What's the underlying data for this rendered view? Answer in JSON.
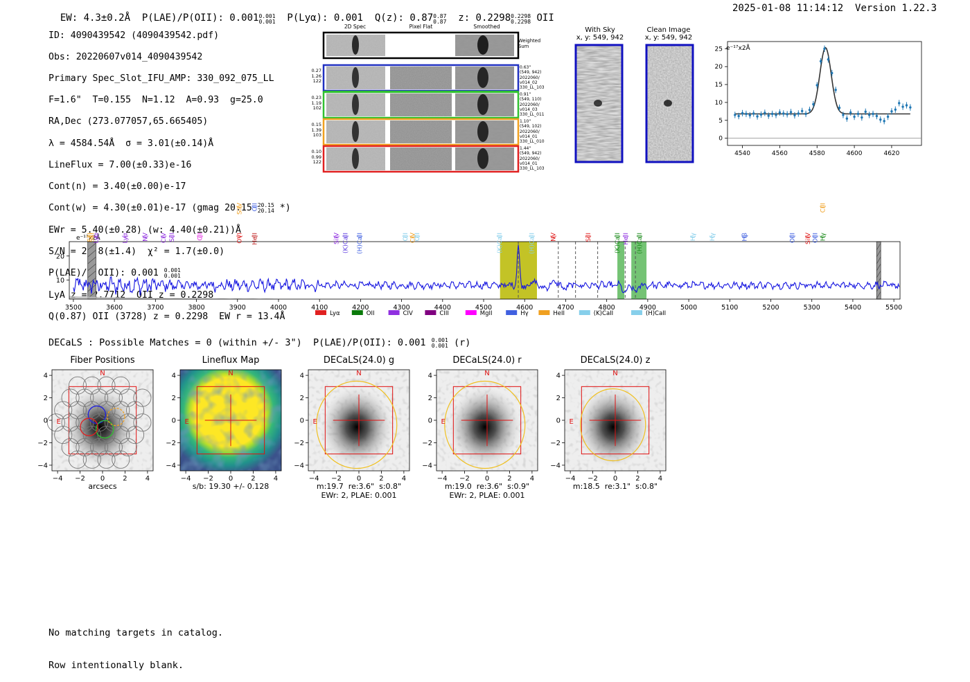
{
  "header": {
    "ew": "EW: 4.3±0.2Å",
    "plae_label": "P(LAE)/P(OII): 0.001",
    "plae_hi": "0.001",
    "plae_lo": "0.001",
    "plya": "P(Lyα): 0.001",
    "qz_label": "Q(z): 0.87",
    "qz_hi": "0.87",
    "qz_lo": "0.87",
    "z_label": "z: 0.2298",
    "z_hi": "0.2298",
    "z_lo": "0.2298",
    "z_line": "OII",
    "timestamp": "2025-01-08 11:14:12",
    "version": "Version 1.22.3"
  },
  "info": {
    "id": "ID: 4090439542 (4090439542.pdf)",
    "obs": "Obs: 20220607v014_4090439542",
    "primary": "Primary Spec_Slot_IFU_AMP: 330_092_075_LL",
    "params": "F=1.6\"  T=0.155  N=1.12  A=0.93  g=25.0",
    "radec": "RA,Dec (273.077057,65.665405)",
    "lambda": "λ = 4584.54Å  σ = 3.01(±0.14)Å",
    "lineflux": "LineFlux = 7.00(±0.33)e-16",
    "contn": "Cont(n) = 3.40(±0.00)e-17",
    "contw": "Cont(w) = 4.30(±0.01)e-17 (gmag 20.15",
    "contw_hi": "20.15",
    "contw_lo": "20.14",
    "contw_end": "*)",
    "ewr": "EWr = 5.40(±0.28) (w: 4.40(±0.21))Å",
    "sn": "S/N = 28.8(±1.4)  χ² = 1.7(±0.0)",
    "plae": "P(LAE)/P(OII): 0.001",
    "plae_hi": "0.001",
    "plae_lo": "0.001",
    "lya": "LyA z = 2.7712  OII z = 0.2298",
    "q": "Q(0.87) OII (3728) z = 0.2298  EW r = 13.4Å"
  },
  "cutouts": {
    "col_2d": "2D Spec",
    "col_flat": "Pixel Flat",
    "col_smooth": "Smoothed",
    "weighted": "Weighted\nSum",
    "rows": [
      {
        "left": "0.27\n1.26\n122",
        "right": "0.63\"\n(549, 942)\n2022060/\nv014_02\n330_LL_103",
        "color": "#2030c0"
      },
      {
        "left": "0.23\n1.19\n102",
        "right": "0.91\"\n(549, 110)\n2022060/\nv014_03\n330_LL_011",
        "color": "#30c030"
      },
      {
        "left": "0.15\n1.39\n103",
        "right": "1.10\"\n(549, 102)\n2022060/\nv014_01\n330_LL_010",
        "color": "#f0a020"
      },
      {
        "left": "0.10\n0.99\n122",
        "right": "1.44\"\n(549, 942)\n2022060/\nv014_01\n330_LL_103",
        "color": "#e02020"
      }
    ]
  },
  "sky": {
    "with_title": "With Sky",
    "with_coords": "x, y: 549, 942",
    "clean_title": "Clean Image",
    "clean_coords": "x, y: 549, 942"
  },
  "chart_data": [
    {
      "type": "scatter",
      "name": "zoom-emission-line",
      "ylabel": "e⁻¹⁷x2Å",
      "xlim": [
        4532,
        4636
      ],
      "ylim": [
        -2,
        27
      ],
      "xticks": [
        4540,
        4560,
        4580,
        4600,
        4620
      ],
      "yticks": [
        0,
        5,
        10,
        15,
        20,
        25
      ],
      "x": [
        4536,
        4538,
        4540,
        4542,
        4544,
        4546,
        4548,
        4550,
        4552,
        4554,
        4556,
        4558,
        4560,
        4562,
        4564,
        4566,
        4568,
        4570,
        4572,
        4574,
        4576,
        4578,
        4580,
        4582,
        4584,
        4586,
        4588,
        4590,
        4592,
        4594,
        4596,
        4598,
        4600,
        4602,
        4604,
        4606,
        4608,
        4610,
        4612,
        4614,
        4616,
        4618,
        4620,
        4622,
        4624,
        4626,
        4628,
        4630
      ],
      "y": [
        6.5,
        6.2,
        7.0,
        6.8,
        6.4,
        6.9,
        6.1,
        6.6,
        7.1,
        6.3,
        6.8,
        6.5,
        7.2,
        6.9,
        6.7,
        7.3,
        6.4,
        6.9,
        7.6,
        6.8,
        7.9,
        9.5,
        14.8,
        21.5,
        25.0,
        22.0,
        18.2,
        13.5,
        8.5,
        6.5,
        5.5,
        7.2,
        6.0,
        6.8,
        5.8,
        7.4,
        6.5,
        6.8,
        6.2,
        5.2,
        4.8,
        6.0,
        7.5,
        8.0,
        9.8,
        8.8,
        9.2,
        8.6
      ],
      "fit": {
        "center": 4584.54,
        "sigma": 3.01,
        "amp": 18.5,
        "continuum": 6.8
      }
    },
    {
      "type": "line",
      "name": "full-spectrum",
      "ylabel": "e⁻¹⁷x2Å",
      "xlim": [
        3490,
        5515
      ],
      "ylim": [
        2,
        26
      ],
      "xticks": [
        3500,
        3600,
        3700,
        3800,
        3900,
        4000,
        4100,
        4200,
        4300,
        4400,
        4500,
        4600,
        4700,
        4800,
        4900,
        5000,
        5100,
        5200,
        5300,
        5400,
        5500
      ],
      "yticks": [
        10,
        20
      ],
      "continuum": 7.8,
      "emission_peak": {
        "x": 4584.5,
        "y": 24.0
      },
      "absorption": [
        {
          "x": 4845,
          "depth": 3.5
        },
        {
          "x": 4870,
          "depth": 3.0
        }
      ],
      "highlight_bands": [
        {
          "x0": 4540,
          "x1": 4630,
          "color": "#b8b800"
        },
        {
          "x0": 4826,
          "x1": 4843,
          "color": "#5cb85c"
        },
        {
          "x0": 4860,
          "x1": 4897,
          "color": "#5cb85c"
        }
      ],
      "masked_bands": [
        {
          "x0": 3535,
          "x1": 3555
        },
        {
          "x0": 5458,
          "x1": 5468
        }
      ],
      "dashed_lines": [
        4584.5,
        4682,
        4724,
        4778,
        4845,
        4870
      ],
      "line_labels": [
        {
          "x": 3545,
          "label": "SiII",
          "color": "#f0a020",
          "row": 1
        },
        {
          "x": 3540,
          "label": "SiII",
          "color": "#f0a020",
          "row": 1
        },
        {
          "x": 3555,
          "label": "Lyα",
          "color": "#9030e0",
          "row": 1
        },
        {
          "x": 3626,
          "label": "Lyα",
          "color": "#9030e0",
          "row": 1
        },
        {
          "x": 3675,
          "label": "NV",
          "color": "#9030e0",
          "row": 1
        },
        {
          "x": 3720,
          "label": "CIV",
          "color": "#9030e0",
          "row": 1
        },
        {
          "x": 3740,
          "label": "SiII",
          "color": "#9030e0",
          "row": 1
        },
        {
          "x": 3808,
          "label": "CII",
          "color": "#e020e0",
          "row": 1
        },
        {
          "x": 3905,
          "label": "OVI",
          "color": "#e02020",
          "row": 1
        },
        {
          "x": 3905,
          "label": "SiIV",
          "color": "#f0a020",
          "row": 2
        },
        {
          "x": 3942,
          "label": "HeII",
          "color": "#c02020",
          "row": 1
        },
        {
          "x": 3942,
          "label": "OII",
          "color": "#4060e0",
          "row": 2
        },
        {
          "x": 4141,
          "label": "SiIV",
          "color": "#9030e0",
          "row": 1
        },
        {
          "x": 4163,
          "label": "(K)CaII",
          "color": "#6040e0",
          "row": 1
        },
        {
          "x": 4198,
          "label": "(H)CaII",
          "color": "#4060e0",
          "row": 1
        },
        {
          "x": 4309,
          "label": "OII",
          "color": "#87cfeb",
          "row": 1
        },
        {
          "x": 4327,
          "label": "CIV",
          "color": "#f0a020",
          "row": 1
        },
        {
          "x": 4338,
          "label": "OII",
          "color": "#87cfeb",
          "row": 1
        },
        {
          "x": 4539,
          "label": "(K)CaII",
          "color": "#87cfeb",
          "row": 1
        },
        {
          "x": 4617,
          "label": "(H)CaII",
          "color": "#87cfeb",
          "row": 1
        },
        {
          "x": 4670,
          "label": "NV",
          "color": "#e02020",
          "row": 1
        },
        {
          "x": 4755,
          "label": "SiII",
          "color": "#e02020",
          "row": 1
        },
        {
          "x": 4826,
          "label": "(K)CaII",
          "color": "#1a8a1a",
          "row": 1
        },
        {
          "x": 4846,
          "label": "HeII",
          "color": "#9030e0",
          "row": 1
        },
        {
          "x": 4880,
          "label": "(H)CaII",
          "color": "#1a8a1a",
          "row": 1
        },
        {
          "x": 5010,
          "label": "Hγ",
          "color": "#87cfeb",
          "row": 1
        },
        {
          "x": 5057,
          "label": "Hγ",
          "color": "#87cfeb",
          "row": 1
        },
        {
          "x": 5136,
          "label": "Hβ",
          "color": "#4060e0",
          "row": 1
        },
        {
          "x": 5252,
          "label": "OIII",
          "color": "#4060e0",
          "row": 1
        },
        {
          "x": 5290,
          "label": "SiIV",
          "color": "#e02020",
          "row": 1
        },
        {
          "x": 5308,
          "label": "OIII",
          "color": "#4060e0",
          "row": 1
        },
        {
          "x": 5327,
          "label": "CIII",
          "color": "#f0a020",
          "row": 2
        },
        {
          "x": 5327,
          "label": "Hγ",
          "color": "#1a8a1a",
          "row": 1
        }
      ],
      "legend": [
        {
          "label": "Lyα",
          "color": "#e02020"
        },
        {
          "label": "OII",
          "color": "#0a7a0a"
        },
        {
          "label": "CIV",
          "color": "#9030e0"
        },
        {
          "label": "CIII",
          "color": "#800080"
        },
        {
          "label": "MgII",
          "color": "#ff00ff"
        },
        {
          "label": "Hγ",
          "color": "#4060e0"
        },
        {
          "label": "HeII",
          "color": "#f0a020"
        },
        {
          "label": "(K)CaII",
          "color": "#87cfeb"
        },
        {
          "label": "(H)CaII",
          "color": "#87cfeb"
        }
      ]
    }
  ],
  "decals_header": "DECaLS : Possible Matches = 0 (within +/- 3\")  P(LAE)/P(OII): 0.001",
  "decals_header_hi": "0.001",
  "decals_header_lo": "0.001",
  "decals_header_end": "(r)",
  "panels": [
    {
      "title": "Fiber Positions",
      "xlabel": "arcsecs",
      "sub2": "",
      "kind": "fiber"
    },
    {
      "title": "Lineflux Map",
      "xlabel": "s/b: 19.30 +/- 0.128",
      "sub2": "",
      "kind": "lineflux"
    },
    {
      "title": "DECaLS(24.0) g",
      "xlabel": "m:19.7  re:3.6\"  s:0.8\"",
      "sub2": "EWr: 2, PLAE: 0.001",
      "kind": "galaxy"
    },
    {
      "title": "DECaLS(24.0) r",
      "xlabel": "m:19.0  re:3.6\"  s:0.9\"",
      "sub2": "EWr: 2, PLAE: 0.001",
      "kind": "galaxy"
    },
    {
      "title": "DECaLS(24.0) z",
      "xlabel": "m:18.5  re:3.1\"  s:0.8\"",
      "sub2": "",
      "kind": "galaxy"
    }
  ],
  "panel_axes": {
    "ticks": [
      "−4",
      "−2",
      "0",
      "2",
      "4"
    ],
    "north": "N",
    "east": "E"
  },
  "footer": {
    "line1": "No matching targets in catalog.",
    "line2": "Row intentionally blank."
  }
}
